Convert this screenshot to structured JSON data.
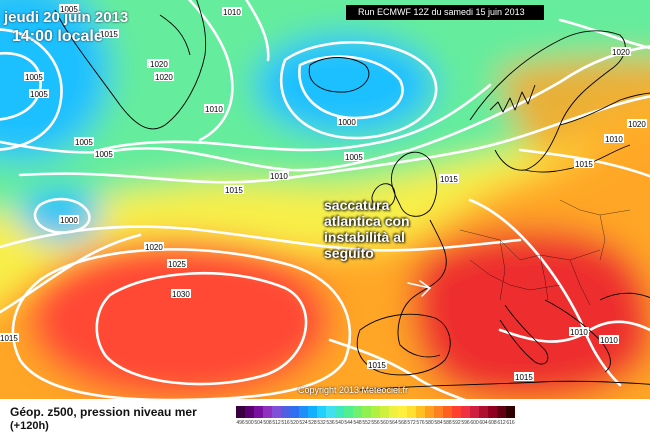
{
  "header": {
    "date": "jeudi 20 juin 2013",
    "time": "14:00 locale",
    "run": "Run ECMWF 12Z du samedi 15 juin 2013"
  },
  "annotation": [
    "saccatura",
    "atlantica con",
    "instabilità al",
    "seguito"
  ],
  "copyright": "Copyright 2013 Meteociel.fr",
  "footer": {
    "field": "Géop. z500, pression niveau mer",
    "lead": "(+120h)"
  },
  "isobar_labels": [
    {
      "text": "1010"
    },
    {
      "text": "1015"
    },
    {
      "text": "1020"
    },
    {
      "text": "1005"
    },
    {
      "text": "1005"
    },
    {
      "text": "1005"
    },
    {
      "text": "1005"
    },
    {
      "text": "1020"
    },
    {
      "text": "1020"
    },
    {
      "text": "1010"
    },
    {
      "text": "1010"
    },
    {
      "text": "1000"
    },
    {
      "text": "1005"
    },
    {
      "text": "1005"
    },
    {
      "text": "1010"
    },
    {
      "text": "1015"
    },
    {
      "text": "1000"
    },
    {
      "text": "1020"
    },
    {
      "text": "1025"
    },
    {
      "text": "1030"
    },
    {
      "text": "1015"
    },
    {
      "text": "1015"
    },
    {
      "text": "1020"
    },
    {
      "text": "1020"
    },
    {
      "text": "1015"
    },
    {
      "text": "1015"
    },
    {
      "text": "1010"
    },
    {
      "text": "1010"
    },
    {
      "text": "1015"
    }
  ],
  "legend": {
    "values": [
      "496",
      "500",
      "504",
      "508",
      "512",
      "516",
      "520",
      "524",
      "528",
      "532",
      "536",
      "540",
      "544",
      "548",
      "552",
      "556",
      "560",
      "564",
      "568",
      "572",
      "576",
      "580",
      "584",
      "588",
      "592",
      "596",
      "600",
      "604",
      "608",
      "612",
      "616"
    ],
    "colors": [
      "#3a0042",
      "#5a0070",
      "#7a10a0",
      "#9030c0",
      "#8050d8",
      "#5060e0",
      "#3070f0",
      "#2090f8",
      "#10b0ff",
      "#20d0ff",
      "#40e0f0",
      "#40e8c0",
      "#50f090",
      "#70f070",
      "#90f050",
      "#b0f040",
      "#d0f040",
      "#f0f040",
      "#fff040",
      "#ffe030",
      "#ffc020",
      "#ffa020",
      "#ff8020",
      "#ff6020",
      "#ff4030",
      "#f03040",
      "#d02040",
      "#b01030",
      "#900020",
      "#600010",
      "#300000"
    ]
  },
  "colors": {
    "low_blue": "#1ec0ff",
    "cyan": "#4ee8dc",
    "green": "#78ef6a",
    "yellow": "#f8ef48",
    "orange": "#ffa628",
    "red": "#ff4a34",
    "deep_red": "#ee2f2e",
    "isobar": "#ffffff",
    "coast": "#000000"
  }
}
